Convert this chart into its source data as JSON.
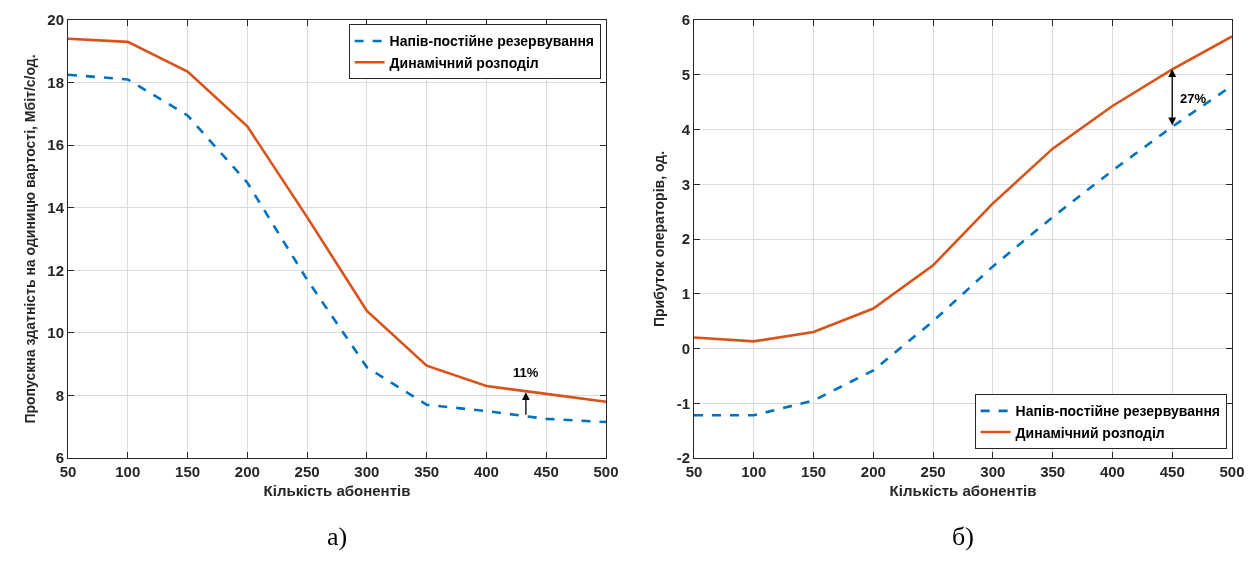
{
  "chart_data": [
    {
      "type": "line",
      "xlabel": "Кількість абонентів",
      "ylabel": "Пропускна здатність на одиницю вартості, Мбіт/с/од.",
      "x": [
        50,
        100,
        150,
        200,
        250,
        300,
        350,
        400,
        450,
        500
      ],
      "series": [
        {
          "name": "Напів-постійне резервування",
          "color": "#0072bd",
          "line_style": "dashed",
          "values": [
            18.25,
            18.1,
            16.95,
            14.8,
            11.7,
            8.9,
            7.7,
            7.5,
            7.25,
            7.15
          ]
        },
        {
          "name": "Динамічний розподіл",
          "color": "#d95319",
          "line_style": "solid",
          "values": [
            19.4,
            19.3,
            18.35,
            16.6,
            13.7,
            10.7,
            8.95,
            8.3,
            8.05,
            7.8
          ]
        }
      ],
      "xlim": [
        50,
        500
      ],
      "xticks": [
        50,
        100,
        150,
        200,
        250,
        300,
        350,
        400,
        450,
        500
      ],
      "ylim": [
        6,
        20
      ],
      "yticks": [
        6,
        8,
        10,
        12,
        14,
        16,
        18,
        20
      ],
      "grid": true,
      "legend": "top right",
      "marker": "none",
      "annotations": [
        {
          "text": "11%",
          "x": 433,
          "y": 8.1
        },
        "а)"
      ]
    },
    {
      "type": "line",
      "xlabel": "Кількість абонентів",
      "ylabel": "Прибуток операторів, од.",
      "x": [
        50,
        100,
        150,
        200,
        250,
        300,
        350,
        400,
        450,
        500
      ],
      "series": [
        {
          "name": "Напів-постійне резервування",
          "color": "#0072bd",
          "line_style": "dashed",
          "values": [
            -1.22,
            -1.22,
            -0.95,
            -0.4,
            0.5,
            1.5,
            2.4,
            3.25,
            4.05,
            4.8
          ]
        },
        {
          "name": "Динамічний розподіл",
          "color": "#d95319",
          "line_style": "solid",
          "values": [
            0.2,
            0.13,
            0.3,
            0.73,
            1.52,
            2.65,
            3.65,
            4.43,
            5.1,
            5.7
          ]
        }
      ],
      "xlim": [
        50,
        500
      ],
      "xticks": [
        50,
        100,
        150,
        200,
        250,
        300,
        350,
        400,
        450,
        500
      ],
      "ylim": [
        -2,
        6
      ],
      "yticks": [
        -2,
        -1,
        0,
        1,
        2,
        3,
        4,
        5,
        6
      ],
      "grid": true,
      "legend": "bottom right",
      "marker": "none",
      "annotations": [
        {
          "text": "27%",
          "x": 450,
          "y": 5.1
        },
        "б)"
      ]
    }
  ]
}
